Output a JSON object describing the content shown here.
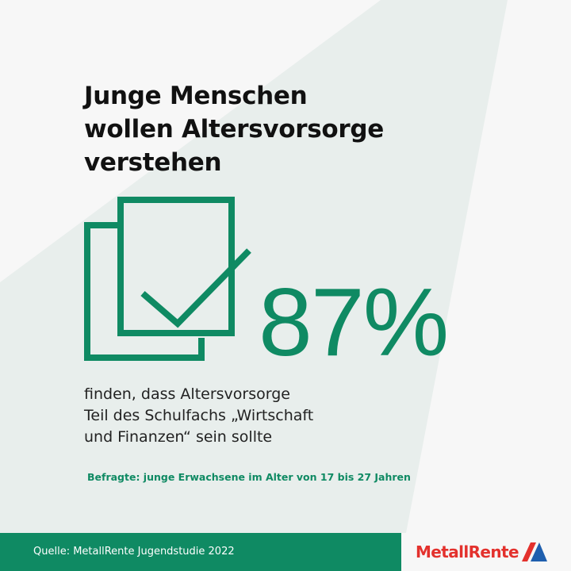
{
  "headline": {
    "lines": [
      "Junge Menschen",
      "wollen Altersvorsorge",
      "verstehen"
    ]
  },
  "stat": {
    "value": "87%"
  },
  "caption": {
    "lines": [
      "finden, dass Altersvorsorge",
      "Teil des Schulfachs „Wirtschaft",
      "und Finanzen“ sein sollte"
    ]
  },
  "respondents_note": "Befragte: junge Erwachsene im Alter von 17 bis 27 Jahren",
  "footer": {
    "source": "Quelle: MetallRente Jugendstudie 2022",
    "logo_text": "MetallRente"
  },
  "icons": {
    "document": "document-checkmark-icon",
    "logo_mark": "metallrente-logo-mark"
  },
  "colors": {
    "accent_green": "#0f8a63",
    "brand_red": "#e3312d",
    "brand_blue": "#1f5fae",
    "headline": "#111111",
    "background": "#f7f7f7",
    "beam": "#e8eeec"
  }
}
